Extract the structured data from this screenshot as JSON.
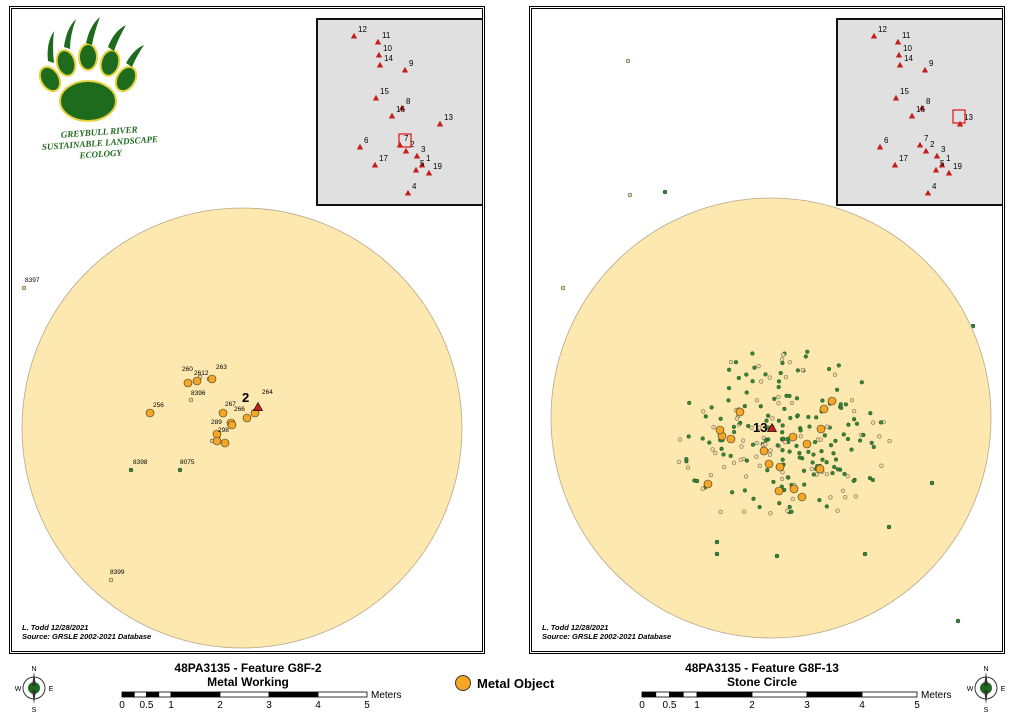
{
  "logo": {
    "line1": "GREYBULL RIVER",
    "line2": "SUSTAINABLE LANDSCAPE",
    "line3": "ECOLOGY"
  },
  "credit": {
    "author": "L. Todd 12/28/2021",
    "source": "Source: GRSLE 2002-2021 Database"
  },
  "left_title": {
    "site": "48PA3135 - Feature G8F-2",
    "subtitle": "Metal Working"
  },
  "right_title": {
    "site": "48PA3135 - Feature G8F-13",
    "subtitle": "Stone Circle"
  },
  "legend": {
    "label": "Metal Object"
  },
  "scalebar": {
    "unit": "Meters",
    "ticks": [
      "0",
      "0.5",
      "1",
      "2",
      "3",
      "4",
      "5"
    ]
  },
  "compass": {
    "n": "N",
    "s": "S",
    "e": "E",
    "w": "W"
  },
  "colors": {
    "buffer_fill": "#fde8b0",
    "metal_object": "#f5a623",
    "green_point": "#2e8b2e",
    "tan_point": "#f2d9a0",
    "feature_marker": "#c41e1e",
    "logo_green": "#1e6b1e",
    "logo_yellow": "#e6d23c"
  },
  "inset_features": [
    {
      "label": "12"
    },
    {
      "label": "11"
    },
    {
      "label": "10"
    },
    {
      "label": "14"
    },
    {
      "label": "9"
    },
    {
      "label": "15"
    },
    {
      "label": "8"
    },
    {
      "label": "16"
    },
    {
      "label": "13"
    },
    {
      "label": "6"
    },
    {
      "label": "7"
    },
    {
      "label": "2"
    },
    {
      "label": "3"
    },
    {
      "label": "17"
    },
    {
      "label": "1"
    },
    {
      "label": "5"
    },
    {
      "label": "19"
    },
    {
      "label": "4"
    }
  ],
  "left_map": {
    "feature_label": "2",
    "point_labels": [
      "8397",
      "260",
      "2612",
      "263",
      "264",
      "256",
      "8396",
      "267",
      "266",
      "289",
      "298",
      "8398",
      "8075",
      "8399"
    ]
  },
  "right_map": {
    "feature_label": "13"
  }
}
